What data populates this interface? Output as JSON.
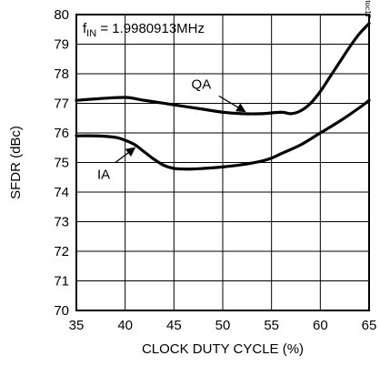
{
  "chart_data": {
    "type": "line",
    "xlabel": "CLOCK DUTY CYCLE (%)",
    "ylabel": "SFDR (dBc)",
    "xlim": [
      35,
      65
    ],
    "ylim": [
      70,
      80
    ],
    "xticks": [
      35,
      40,
      45,
      50,
      55,
      60,
      65
    ],
    "yticks": [
      70,
      71,
      72,
      73,
      74,
      75,
      76,
      77,
      78,
      79,
      80
    ],
    "grid": true,
    "annotation": {
      "prefix": "f",
      "subscript": "IN",
      "text": " = 1.9980913MHz"
    },
    "chart_code": "MAX19700 toc17",
    "series": [
      {
        "name": "QA",
        "x": [
          35,
          37,
          40,
          42,
          45,
          48,
          50,
          52,
          54,
          56,
          57,
          58,
          59,
          60,
          61,
          62,
          63,
          64,
          65
        ],
        "y": [
          77.1,
          77.15,
          77.2,
          77.1,
          76.95,
          76.8,
          76.7,
          76.65,
          76.65,
          76.7,
          76.65,
          76.75,
          77.0,
          77.4,
          77.9,
          78.4,
          78.9,
          79.35,
          79.7
        ]
      },
      {
        "name": "IA",
        "x": [
          35,
          37,
          39,
          40,
          41,
          42,
          43,
          44,
          45,
          46,
          47,
          48,
          50,
          52,
          54,
          55,
          56,
          58,
          60,
          62,
          64,
          65
        ],
        "y": [
          75.9,
          75.9,
          75.85,
          75.75,
          75.6,
          75.35,
          75.1,
          74.9,
          74.8,
          74.78,
          74.78,
          74.8,
          74.85,
          74.93,
          75.05,
          75.15,
          75.3,
          75.6,
          76.0,
          76.4,
          76.85,
          77.1
        ]
      }
    ],
    "series_labels": [
      {
        "series": "QA",
        "text": "QA",
        "label_x": 47.8,
        "label_y": 77.65,
        "arrow_from_x": 49.6,
        "arrow_from_y": 77.25,
        "arrow_to_x": 52.3,
        "arrow_to_y": 76.72
      },
      {
        "series": "IA",
        "text": "IA",
        "label_x": 37.8,
        "label_y": 74.6,
        "arrow_from_x": 39.0,
        "arrow_from_y": 75.0,
        "arrow_to_x": 41.0,
        "arrow_to_y": 75.5
      }
    ]
  }
}
